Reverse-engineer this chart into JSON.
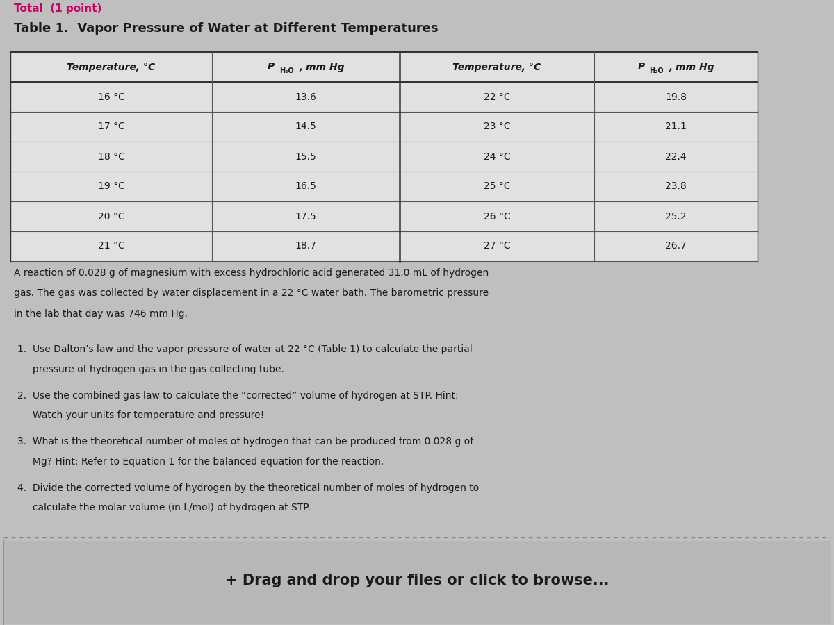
{
  "title": "Table 1.  Vapor Pressure of Water at Different Temperatures",
  "left_temps": [
    "16 °C",
    "17 °C",
    "18 °C",
    "19 °C",
    "20 °C",
    "21 °C"
  ],
  "left_pressures": [
    "13.6",
    "14.5",
    "15.5",
    "16.5",
    "17.5",
    "18.7"
  ],
  "right_temps": [
    "22 °C",
    "23 °C",
    "24 °C",
    "25 °C",
    "26 °C",
    "27 °C"
  ],
  "right_pressures": [
    "19.8",
    "21.1",
    "22.4",
    "23.8",
    "25.2",
    "26.7"
  ],
  "paragraph_lines": [
    "A reaction of 0.028 g of magnesium with excess hydrochloric acid generated 31.0 mL of hydrogen",
    "gas. The gas was collected by water displacement in a 22 °C water bath. The barometric pressure",
    "in the lab that day was 746 mm Hg."
  ],
  "q1_line1": "1.  Use Dalton’s law and the vapor pressure of water at 22 °C (Table 1) to calculate the partial",
  "q1_line2": "     pressure of hydrogen gas in the gas collecting tube.",
  "q2_line1": "2.  Use the combined gas law to calculate the “corrected” volume of hydrogen at STP. Hint:",
  "q2_line2": "     Watch your units for temperature and pressure!",
  "q3_line1": "3.  What is the theoretical number of moles of hydrogen that can be produced from 0.028 g of",
  "q3_line2": "     Mg? Hint: Refer to Equation 1 for the balanced equation for the reaction.",
  "q4_line1": "4.  Divide the corrected volume of hydrogen by the theoretical number of moles of hydrogen to",
  "q4_line2": "     calculate the molar volume (in L/mol) of hydrogen at STP.",
  "drag_text": "+ Drag and drop your files or click to browse...",
  "bg_color": "#c0bfbf",
  "table_bg": "#e2e0e0",
  "text_color": "#1a1a1a",
  "top_text": "Total  (1 point)",
  "top_text_color": "#cc0066"
}
